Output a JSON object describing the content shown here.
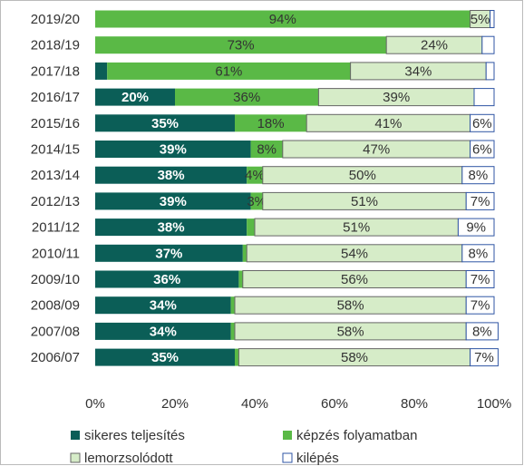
{
  "chart_data": {
    "type": "stacked-bar-horizontal",
    "categories": [
      "2019/20",
      "2018/19",
      "2017/18",
      "2016/17",
      "2015/16",
      "2014/15",
      "2013/14",
      "2012/13",
      "2011/12",
      "2010/11",
      "2009/10",
      "2008/09",
      "2007/08",
      "2006/07"
    ],
    "series": [
      {
        "name": "sikeres teljesítés",
        "color": "#0b5e57",
        "values": [
          0,
          0,
          3,
          20,
          35,
          39,
          38,
          39,
          38,
          37,
          36,
          34,
          34,
          35
        ],
        "value_labels": [
          null,
          null,
          null,
          "20%",
          "35%",
          "39%",
          "38%",
          "39%",
          "38%",
          "37%",
          "36%",
          "34%",
          "34%",
          "35%"
        ]
      },
      {
        "name": "képzés folyamatban",
        "color": "#5ab946",
        "values": [
          94,
          73,
          61,
          36,
          18,
          8,
          4,
          3,
          2,
          1,
          1,
          1,
          1,
          1
        ],
        "value_labels": [
          "94%",
          "73%",
          "61%",
          "36%",
          "18%",
          "8%",
          "4%",
          "3%",
          null,
          null,
          null,
          null,
          null,
          null
        ]
      },
      {
        "name": "lemorzsolódott",
        "color": "#d6ecc8",
        "values": [
          5,
          24,
          34,
          39,
          41,
          47,
          50,
          51,
          51,
          54,
          56,
          58,
          58,
          58
        ],
        "value_labels": [
          "5%",
          "24%",
          "34%",
          "39%",
          "41%",
          "47%",
          "50%",
          "51%",
          "51%",
          "54%",
          "56%",
          "58%",
          "58%",
          "58%"
        ]
      },
      {
        "name": "kilépés",
        "color": "#ffffff",
        "values": [
          1,
          3,
          2,
          5,
          6,
          6,
          8,
          7,
          9,
          8,
          7,
          7,
          8,
          7
        ],
        "value_labels": [
          null,
          null,
          null,
          null,
          "6%",
          "6%",
          "8%",
          "7%",
          "9%",
          "8%",
          "7%",
          "7%",
          "8%",
          "7%"
        ]
      }
    ],
    "xlim": [
      0,
      100
    ],
    "xticks": [
      {
        "value": 0,
        "label": "0%"
      },
      {
        "value": 20,
        "label": "20%"
      },
      {
        "value": 40,
        "label": "40%"
      },
      {
        "value": 60,
        "label": "60%"
      },
      {
        "value": 80,
        "label": "80%"
      },
      {
        "value": 100,
        "label": "100%"
      }
    ],
    "legend": "bottom"
  }
}
